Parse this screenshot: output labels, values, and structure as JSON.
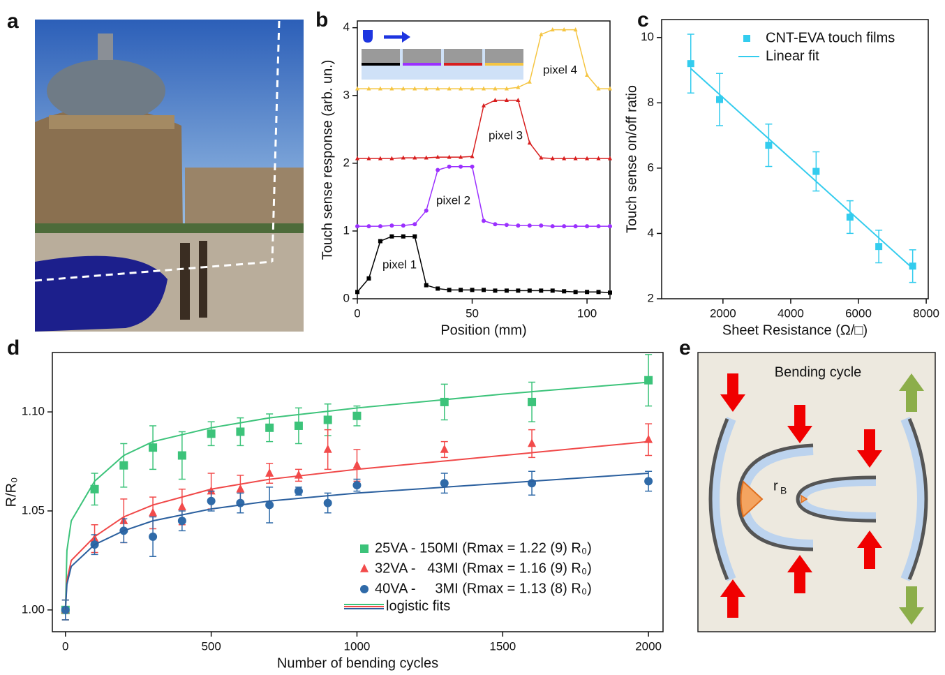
{
  "panels": [
    "a",
    "b",
    "c",
    "d",
    "e"
  ],
  "diagram": {
    "title": "Bending cycle",
    "radius_label": "r",
    "radius_subscript": "B"
  },
  "chart_data": [
    {
      "type": "line",
      "xlabel": "Position (mm)",
      "ylabel": "Touch sense response (arb. un.)",
      "xlim": [
        0,
        110
      ],
      "ylim": [
        0,
        4.1
      ],
      "xticks": [
        0,
        50,
        100
      ],
      "yticks": [
        0,
        1,
        2,
        3,
        4
      ],
      "x": [
        0,
        5,
        10,
        15,
        20,
        25,
        30,
        35,
        40,
        45,
        50,
        55,
        60,
        65,
        70,
        75,
        80,
        85,
        90,
        95,
        100,
        105,
        110
      ],
      "series": [
        {
          "name": "pixel 1",
          "color": "#000000",
          "mode": "line+markers",
          "marker": "square",
          "values": [
            0.1,
            0.3,
            0.85,
            0.92,
            0.92,
            0.92,
            0.2,
            0.15,
            0.13,
            0.13,
            0.13,
            0.13,
            0.12,
            0.12,
            0.12,
            0.12,
            0.12,
            0.12,
            0.11,
            0.1,
            0.1,
            0.1,
            0.09
          ]
        },
        {
          "name": "pixel 2",
          "color": "#9b30ff",
          "mode": "line+markers",
          "marker": "circle",
          "values": [
            1.07,
            1.07,
            1.07,
            1.08,
            1.08,
            1.1,
            1.3,
            1.9,
            1.95,
            1.95,
            1.95,
            1.15,
            1.1,
            1.09,
            1.08,
            1.08,
            1.08,
            1.07,
            1.07,
            1.07,
            1.07,
            1.07,
            1.07
          ]
        },
        {
          "name": "pixel 3",
          "color": "#d81e1e",
          "mode": "line+markers",
          "marker": "triangle",
          "values": [
            2.07,
            2.07,
            2.07,
            2.07,
            2.08,
            2.08,
            2.08,
            2.09,
            2.09,
            2.09,
            2.1,
            2.85,
            2.93,
            2.93,
            2.93,
            2.3,
            2.08,
            2.07,
            2.07,
            2.07,
            2.07,
            2.07,
            2.07
          ]
        },
        {
          "name": "pixel 4",
          "color": "#f5c542",
          "mode": "line+markers",
          "marker": "triangle",
          "values": [
            3.1,
            3.1,
            3.1,
            3.1,
            3.1,
            3.1,
            3.1,
            3.1,
            3.1,
            3.1,
            3.1,
            3.1,
            3.1,
            3.1,
            3.12,
            3.2,
            3.9,
            3.97,
            3.97,
            3.97,
            3.3,
            3.1,
            3.1
          ]
        }
      ]
    },
    {
      "type": "scatter",
      "xlabel": "Sheet Resistance (Ω/□)",
      "ylabel": "Touch sense on/off ratio",
      "xlim": [
        190,
        8060
      ],
      "ylim": [
        2,
        10.55
      ],
      "xticks": [
        2000,
        4000,
        6000,
        8000
      ],
      "yticks": [
        2,
        4,
        6,
        8,
        10
      ],
      "series": [
        {
          "name": "CNT-EVA touch films",
          "color": "#33ccee",
          "mode": "markers",
          "marker": "square",
          "x": [
            1050,
            1900,
            3350,
            4750,
            5750,
            6600,
            7600
          ],
          "values": [
            9.2,
            8.1,
            6.7,
            5.9,
            4.5,
            3.6,
            3.0
          ],
          "error": [
            0.9,
            0.8,
            0.65,
            0.6,
            0.5,
            0.5,
            0.5
          ]
        },
        {
          "name": "Linear fit",
          "color": "#33ccee",
          "mode": "line",
          "x": [
            1050,
            7600
          ],
          "values": [
            9.05,
            2.93
          ]
        }
      ]
    },
    {
      "type": "scatter",
      "xlabel": "Number of bending cycles",
      "ylabel": "R/R₀",
      "xlim": [
        -45,
        2050
      ],
      "ylim": [
        0.989,
        1.13
      ],
      "xticks": [
        0,
        500,
        1000,
        1500,
        2000
      ],
      "yticks": [
        {
          "value": 1,
          "label": "1.00"
        },
        {
          "value": 1.05,
          "label": "1.05"
        },
        {
          "value": 1.1,
          "label": "1.10"
        }
      ],
      "fit_label": "logistic fits",
      "series": [
        {
          "name": "25VA - 150MI (Rmax = 1.22 (9) R₀)",
          "color": "#3cc37a",
          "mode": "markers",
          "marker": "square",
          "x": [
            0,
            100,
            200,
            300,
            400,
            500,
            600,
            700,
            800,
            900,
            1000,
            1300,
            1600,
            2000
          ],
          "values": [
            1.0,
            1.061,
            1.073,
            1.082,
            1.078,
            1.089,
            1.09,
            1.092,
            1.093,
            1.096,
            1.098,
            1.105,
            1.105,
            1.116
          ],
          "error": [
            0.005,
            0.008,
            0.011,
            0.011,
            0.012,
            0.006,
            0.007,
            0.007,
            0.009,
            0.008,
            0.005,
            0.009,
            0.01,
            0.013
          ]
        },
        {
          "name": "32VA -   43MI (Rmax = 1.16 (9) R₀)",
          "color": "#f24b4b",
          "mode": "markers",
          "marker": "triangle",
          "x": [
            0,
            100,
            200,
            300,
            400,
            500,
            600,
            700,
            800,
            900,
            1000,
            1300,
            1600,
            2000
          ],
          "values": [
            1.0,
            1.036,
            1.045,
            1.049,
            1.052,
            1.06,
            1.061,
            1.069,
            1.068,
            1.081,
            1.073,
            1.081,
            1.084,
            1.086
          ],
          "error": [
            0.005,
            0.007,
            0.011,
            0.008,
            0.009,
            0.009,
            0.007,
            0.005,
            0.003,
            0.01,
            0.008,
            0.004,
            0.007,
            0.008
          ]
        },
        {
          "name": "40VA -     3MI (Rmax = 1.13 (8) R₀)",
          "color": "#2f6aa8",
          "mode": "markers",
          "marker": "circle",
          "x": [
            0,
            100,
            200,
            300,
            400,
            500,
            600,
            700,
            800,
            900,
            1000,
            1300,
            1600,
            2000
          ],
          "values": [
            1.0,
            1.033,
            1.04,
            1.037,
            1.045,
            1.055,
            1.054,
            1.053,
            1.06,
            1.054,
            1.063,
            1.064,
            1.064,
            1.065
          ],
          "error": [
            0.005,
            0.005,
            0.006,
            0.01,
            0.005,
            0.005,
            0.005,
            0.009,
            0.002,
            0.005,
            0.003,
            0.005,
            0.006,
            0.005
          ]
        },
        {
          "color": "#3cc37a",
          "mode": "line",
          "x": [
            0,
            5,
            20,
            100,
            200,
            300,
            500,
            700,
            1000,
            1500,
            2000
          ],
          "values": [
            1.0,
            1.03,
            1.045,
            1.065,
            1.078,
            1.085,
            1.092,
            1.097,
            1.102,
            1.109,
            1.115
          ]
        },
        {
          "color": "#f04848",
          "mode": "line",
          "x": [
            0,
            5,
            20,
            100,
            200,
            300,
            500,
            700,
            1000,
            1500,
            2000
          ],
          "values": [
            1.0,
            1.015,
            1.025,
            1.037,
            1.047,
            1.053,
            1.061,
            1.066,
            1.071,
            1.078,
            1.085
          ]
        },
        {
          "color": "#2a5f9e",
          "mode": "line",
          "x": [
            0,
            5,
            20,
            100,
            200,
            300,
            500,
            700,
            1000,
            1500,
            2000
          ],
          "values": [
            1.0,
            1.013,
            1.022,
            1.033,
            1.04,
            1.045,
            1.051,
            1.055,
            1.059,
            1.064,
            1.069
          ]
        }
      ]
    }
  ]
}
